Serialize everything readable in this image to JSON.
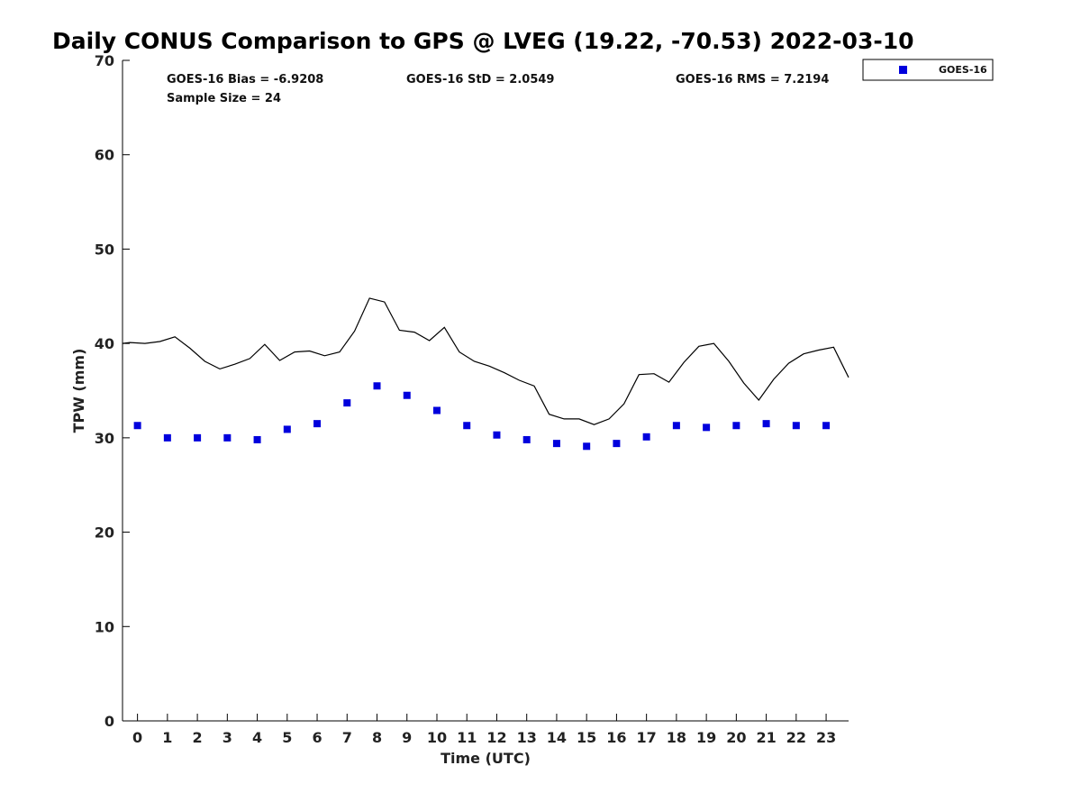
{
  "chart_data": {
    "type": "scatter",
    "title": "Daily CONUS Comparison to GPS @ LVEG (19.22, -70.53) 2022-03-10",
    "xlabel": "Time (UTC)",
    "ylabel": "TPW (mm)",
    "xlim": [
      -0.5,
      23.75
    ],
    "ylim": [
      0,
      70
    ],
    "xticks": [
      0,
      1,
      2,
      3,
      4,
      5,
      6,
      7,
      8,
      9,
      10,
      11,
      12,
      13,
      14,
      15,
      16,
      17,
      18,
      19,
      20,
      21,
      22,
      23
    ],
    "yticks": [
      0,
      10,
      20,
      30,
      40,
      50,
      60,
      70
    ],
    "grid": false,
    "legend_position": "top-right",
    "stats": {
      "bias": "GOES-16 Bias = -6.9208",
      "std": "GOES-16 StD = 2.0549",
      "rms": "GOES-16 RMS = 7.2194",
      "sample_size": "Sample Size = 24"
    },
    "series": [
      {
        "name": "GOES-16",
        "kind": "scatter",
        "marker": "square",
        "color": "#0000dd",
        "x": [
          0,
          1,
          2,
          3,
          4,
          5,
          6,
          7,
          8,
          9,
          10,
          11,
          12,
          13,
          14,
          15,
          16,
          17,
          18,
          19,
          20,
          21,
          22,
          23
        ],
        "y": [
          31.3,
          30.0,
          30.0,
          30.0,
          29.8,
          30.9,
          31.5,
          33.7,
          35.5,
          34.5,
          32.9,
          31.3,
          30.3,
          29.8,
          29.4,
          29.1,
          29.4,
          30.1,
          31.3,
          31.1,
          31.3,
          31.5,
          31.3,
          31.3
        ]
      },
      {
        "kind": "line",
        "color": "#000000",
        "x": [
          -0.5,
          -0.25,
          0.25,
          0.75,
          1.25,
          1.75,
          2.25,
          2.75,
          3.25,
          3.75,
          4.25,
          4.75,
          5.25,
          5.75,
          6.25,
          6.75,
          7.25,
          7.75,
          8.25,
          8.75,
          9.25,
          9.75,
          10.25,
          10.75,
          11.25,
          11.75,
          12.25,
          12.75,
          13.25,
          13.75,
          14.25,
          14.75,
          15.25,
          15.75,
          16.25,
          16.75,
          17.25,
          17.75,
          18.25,
          18.75,
          19.25,
          19.75,
          20.25,
          20.75,
          21.25,
          21.75,
          22.25,
          22.75,
          23.25,
          23.75
        ],
        "y": [
          40.0,
          40.1,
          40.0,
          40.2,
          40.7,
          39.5,
          38.1,
          37.3,
          37.8,
          38.4,
          39.9,
          38.2,
          39.1,
          39.2,
          38.7,
          39.1,
          41.3,
          44.8,
          44.4,
          41.4,
          41.2,
          40.3,
          41.7,
          39.1,
          38.1,
          37.6,
          36.9,
          36.1,
          35.5,
          32.5,
          32.0,
          32.0,
          31.4,
          32.0,
          33.6,
          36.7,
          36.8,
          35.9,
          38.0,
          39.7,
          40.0,
          38.1,
          35.8,
          34.0,
          36.2,
          37.9,
          38.9,
          39.3,
          39.6,
          36.4
        ]
      }
    ]
  }
}
